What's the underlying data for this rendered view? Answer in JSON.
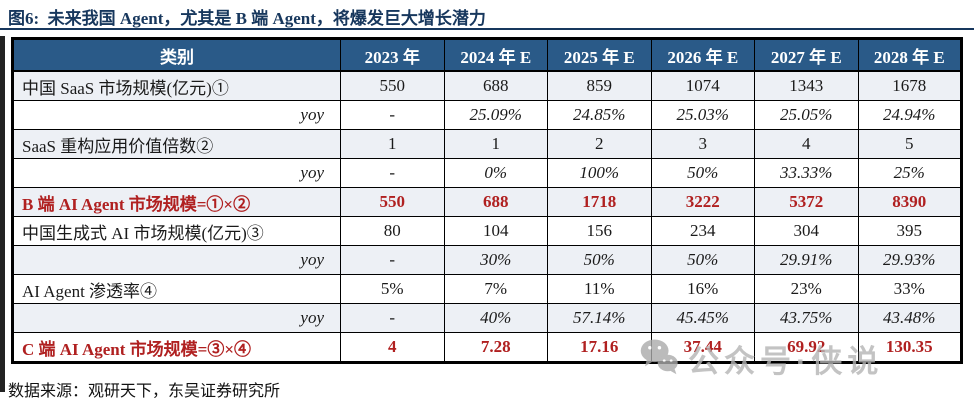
{
  "title": "图6:  未来我国 Agent，尤其是 B 端 Agent，将爆发巨大增长潜力",
  "source": "数据来源：观研天下，东吴证券研究所",
  "watermark": {
    "icon": "wechat-icon",
    "text": "公众号·侠说"
  },
  "colors": {
    "title_navy": "#17375d",
    "header_bg": "#2a5a88",
    "header_text": "#ffffff",
    "row_shade": "#edf0f5",
    "highlight_red": "#b02020",
    "border": "#000000",
    "watermark_gray": "#b5b5b5"
  },
  "chart_data": {
    "type": "table",
    "columns": [
      "类别",
      "2023 年",
      "2024 年 E",
      "2025 年 E",
      "2026 年 E",
      "2027 年 E",
      "2028 年 E"
    ],
    "rows": [
      {
        "label": "中国 SaaS 市场规模(亿元)①",
        "values": [
          "550",
          "688",
          "859",
          "1074",
          "1343",
          "1678"
        ],
        "style": "",
        "shade": true
      },
      {
        "label": "yoy",
        "values": [
          "-",
          "25.09%",
          "24.85%",
          "25.03%",
          "25.05%",
          "24.94%"
        ],
        "style": "yoy",
        "shade": false
      },
      {
        "label": "SaaS 重构应用价值倍数②",
        "values": [
          "1",
          "1",
          "2",
          "3",
          "4",
          "5"
        ],
        "style": "",
        "shade": true
      },
      {
        "label": "yoy",
        "values": [
          "-",
          "0%",
          "100%",
          "50%",
          "33.33%",
          "25%"
        ],
        "style": "yoy",
        "shade": false
      },
      {
        "label": "B 端 AI Agent 市场规模=①×②",
        "values": [
          "550",
          "688",
          "1718",
          "3222",
          "5372",
          "8390"
        ],
        "style": "highlight",
        "shade": true
      },
      {
        "label": "中国生成式 AI 市场规模(亿元)③",
        "values": [
          "80",
          "104",
          "156",
          "234",
          "304",
          "395"
        ],
        "style": "",
        "shade": false
      },
      {
        "label": "yoy",
        "values": [
          "-",
          "30%",
          "50%",
          "50%",
          "29.91%",
          "29.93%"
        ],
        "style": "yoy",
        "shade": true
      },
      {
        "label": "AI Agent 渗透率④",
        "values": [
          "5%",
          "7%",
          "11%",
          "16%",
          "23%",
          "33%"
        ],
        "style": "",
        "shade": false
      },
      {
        "label": "yoy",
        "values": [
          "-",
          "40%",
          "57.14%",
          "45.45%",
          "43.75%",
          "43.48%"
        ],
        "style": "yoy",
        "shade": true
      },
      {
        "label": "C 端 AI Agent 市场规模=③×④",
        "values": [
          "4",
          "7.28",
          "17.16",
          "37.44",
          "69.92",
          "130.35"
        ],
        "style": "highlight",
        "shade": false
      }
    ]
  }
}
